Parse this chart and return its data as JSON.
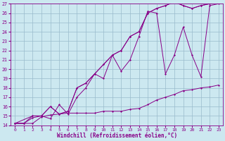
{
  "xlabel": "Windchill (Refroidissement éolien,°C)",
  "xlim": [
    -0.5,
    23.5
  ],
  "ylim": [
    14,
    27
  ],
  "yticks": [
    14,
    15,
    16,
    17,
    18,
    19,
    20,
    21,
    22,
    23,
    24,
    25,
    26,
    27
  ],
  "xticks": [
    0,
    1,
    2,
    3,
    4,
    5,
    6,
    7,
    8,
    9,
    10,
    11,
    12,
    13,
    14,
    15,
    16,
    17,
    18,
    19,
    20,
    21,
    22,
    23
  ],
  "bg_color": "#cce8f0",
  "line_color": "#880088",
  "grid_color": "#99bbcc",
  "line1_x": [
    0,
    1,
    2,
    3,
    4,
    5,
    6,
    7,
    8,
    9,
    10,
    11,
    12,
    13,
    14,
    15,
    16,
    17,
    18,
    19,
    20,
    21,
    22,
    23
  ],
  "line1_y": [
    14.2,
    14.2,
    14.2,
    14.9,
    15.1,
    15.2,
    15.3,
    15.3,
    15.3,
    15.3,
    15.5,
    15.5,
    15.5,
    15.7,
    15.8,
    16.2,
    16.7,
    17.0,
    17.3,
    17.7,
    17.8,
    18.0,
    18.1,
    18.3
  ],
  "line2_x": [
    0,
    1,
    2,
    3,
    4,
    5,
    6,
    7,
    8,
    9,
    10,
    11,
    12,
    13,
    14,
    15,
    16,
    17,
    18,
    19,
    20,
    21,
    22,
    23
  ],
  "line2_y": [
    14.2,
    14.2,
    15.0,
    15.0,
    16.0,
    15.2,
    15.5,
    18.0,
    18.5,
    19.5,
    20.5,
    21.5,
    22.0,
    23.5,
    24.0,
    26.0,
    26.5,
    26.8,
    27.2,
    26.8,
    26.5,
    26.8,
    27.0,
    27.2
  ],
  "line3_x": [
    0,
    2,
    3,
    4,
    5,
    6,
    7,
    8,
    9,
    10,
    11,
    12,
    13,
    14,
    15,
    16,
    17,
    18,
    19,
    20,
    21,
    22,
    23
  ],
  "line3_y": [
    14.2,
    15.0,
    15.0,
    16.0,
    15.2,
    15.5,
    18.0,
    18.5,
    19.5,
    20.5,
    21.5,
    22.0,
    23.5,
    24.0,
    26.0,
    26.5,
    26.8,
    27.2,
    26.8,
    26.5,
    26.8,
    27.0,
    27.2
  ],
  "line4_x": [
    0,
    1,
    2,
    3,
    4,
    5,
    6,
    7,
    8,
    9,
    10,
    11,
    12,
    13,
    14,
    15,
    16,
    17,
    18,
    19,
    20,
    21,
    22,
    23
  ],
  "line4_y": [
    14.2,
    14.2,
    14.8,
    15.0,
    14.7,
    16.2,
    15.2,
    17.0,
    18.0,
    19.5,
    19.0,
    21.5,
    19.8,
    21.0,
    23.5,
    26.2,
    26.0,
    19.5,
    21.5,
    24.5,
    21.5,
    19.2,
    26.8,
    27.0
  ]
}
